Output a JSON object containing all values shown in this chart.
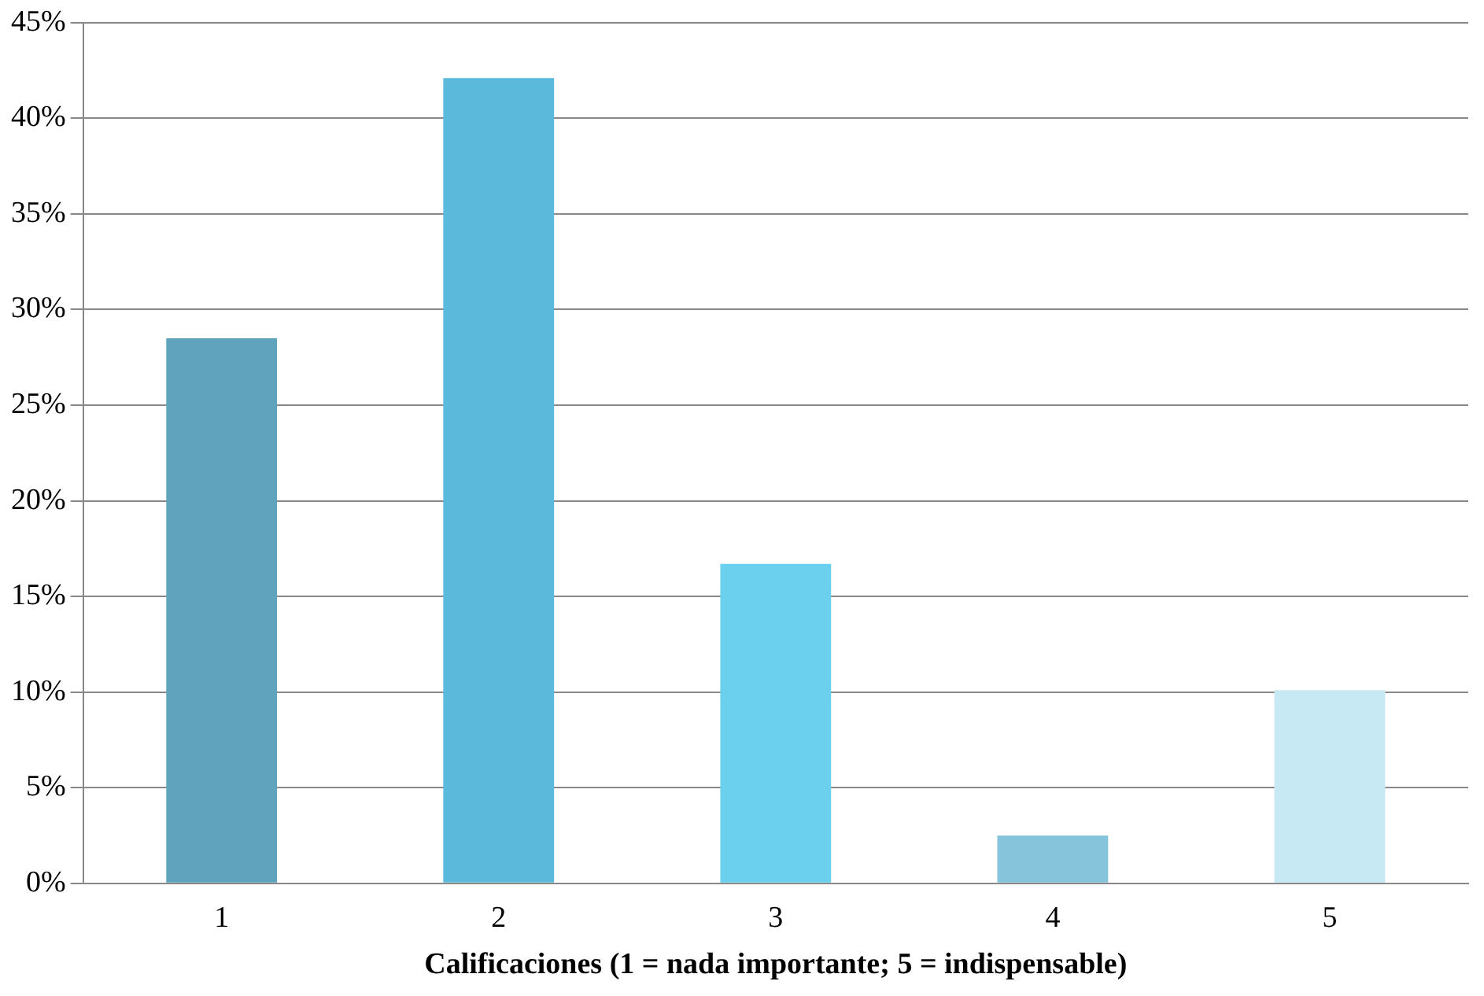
{
  "chart_data": {
    "type": "bar",
    "xlabel": "Calificaciones (1 = nada importante; 5 = indispensable)",
    "categories": [
      "1",
      "2",
      "3",
      "4",
      "5"
    ],
    "values": [
      28.5,
      42.1,
      16.7,
      2.5,
      10.1
    ],
    "colors": [
      "#5fa3bd",
      "#5bbadc",
      "#6ad0ee",
      "#86c4dc",
      "#c6e9f3"
    ],
    "ylim": [
      0,
      45
    ],
    "yticks": [
      {
        "value": 0,
        "label": "0%"
      },
      {
        "value": 5,
        "label": "5%"
      },
      {
        "value": 10,
        "label": "10%"
      },
      {
        "value": 15,
        "label": "15%"
      },
      {
        "value": 20,
        "label": "20%"
      },
      {
        "value": 25,
        "label": "25%"
      },
      {
        "value": 30,
        "label": "30%"
      },
      {
        "value": 35,
        "label": "35%"
      },
      {
        "value": 40,
        "label": "40%"
      },
      {
        "value": 45,
        "label": "45%"
      }
    ],
    "grid": "y",
    "legend": false
  }
}
